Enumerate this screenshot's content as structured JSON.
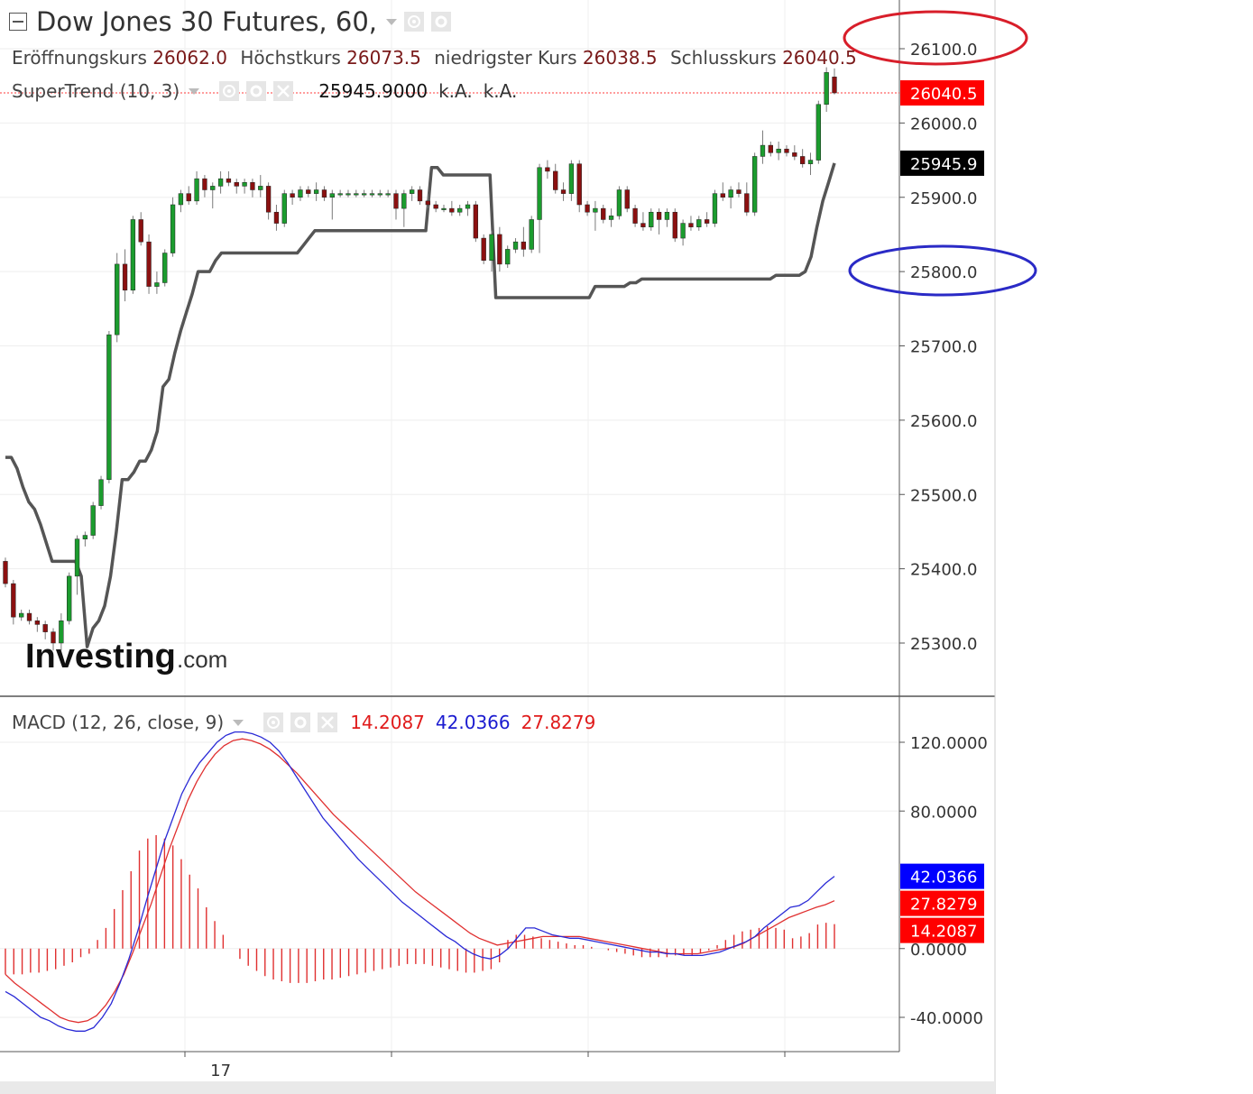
{
  "header": {
    "title": "Dow Jones 30 Futures, 60,",
    "ohlc": [
      {
        "label": "Eröffnungskurs",
        "value": "26062.0"
      },
      {
        "label": "Höchstkurs",
        "value": "26073.5"
      },
      {
        "label": "niedrigster Kurs",
        "value": "26038.5"
      },
      {
        "label": "Schlusskurs",
        "value": "26040.5"
      }
    ],
    "supertrend_label": "SuperTrend (10, 3)",
    "supertrend_value": "25945.9000",
    "supertrend_na1": "k.A.",
    "supertrend_na2": "k.A.",
    "macd_label": "MACD (12, 26, close, 9)",
    "macd_hist": "14.2087",
    "macd_line": "42.0366",
    "macd_signal": "27.8279"
  },
  "watermark": {
    "brand": "Investing",
    "suffix": ".com"
  },
  "colors": {
    "up": "#1b9c2e",
    "down": "#8b1010",
    "supertrend": "#555555",
    "macd": "#2a2ad6",
    "signal": "#e03030",
    "hist": "#e03030",
    "red_ellipse": "#d81e2a",
    "blue_ellipse": "#2a2ac6",
    "tag_red": "#ff0000",
    "tag_black": "#000000",
    "tag_blue": "#0000ff"
  },
  "chart_data": [
    {
      "type": "candlestick",
      "title": "Dow Jones 30 Futures, 60,",
      "ylim": [
        25240,
        26200
      ],
      "y_ticks": [
        "26100.0",
        "26000.0",
        "25900.0",
        "25800.0",
        "25700.0",
        "25600.0",
        "25500.0",
        "25400.0",
        "25300.0"
      ],
      "x_tick_labels": [
        {
          "index": 27,
          "label": "17"
        }
      ],
      "price_tags": [
        {
          "value": 26040.5,
          "label": "26040.5",
          "color": "#ff0000"
        },
        {
          "value": 25945.9,
          "label": "25945.9",
          "color": "#000000"
        }
      ],
      "ohlc": [
        [
          25410,
          25415,
          25375,
          25380
        ],
        [
          25380,
          25385,
          25325,
          25335
        ],
        [
          25335,
          25345,
          25330,
          25340
        ],
        [
          25340,
          25345,
          25325,
          25330
        ],
        [
          25330,
          25335,
          25315,
          25325
        ],
        [
          25325,
          25330,
          25305,
          25315
        ],
        [
          25315,
          25320,
          25290,
          25300
        ],
        [
          25300,
          25340,
          25290,
          25330
        ],
        [
          25330,
          25395,
          25325,
          25390
        ],
        [
          25390,
          25445,
          25365,
          25440
        ],
        [
          25440,
          25450,
          25430,
          25445
        ],
        [
          25445,
          25490,
          25440,
          25485
        ],
        [
          25485,
          25525,
          25480,
          25520
        ],
        [
          25520,
          25720,
          25515,
          25715
        ],
        [
          25715,
          25825,
          25705,
          25810
        ],
        [
          25810,
          25830,
          25760,
          25775
        ],
        [
          25775,
          25875,
          25770,
          25870
        ],
        [
          25870,
          25880,
          25835,
          25840
        ],
        [
          25840,
          25850,
          25770,
          25780
        ],
        [
          25780,
          25800,
          25770,
          25785
        ],
        [
          25785,
          25830,
          25780,
          25825
        ],
        [
          25825,
          25900,
          25820,
          25890
        ],
        [
          25890,
          25910,
          25880,
          25905
        ],
        [
          25905,
          25915,
          25890,
          25895
        ],
        [
          25895,
          25935,
          25890,
          25925
        ],
        [
          25925,
          25930,
          25900,
          25910
        ],
        [
          25910,
          25920,
          25885,
          25915
        ],
        [
          25915,
          25935,
          25905,
          25925
        ],
        [
          25925,
          25935,
          25915,
          25920
        ],
        [
          25920,
          25925,
          25905,
          25915
        ],
        [
          25915,
          25925,
          25905,
          25920
        ],
        [
          25920,
          25925,
          25900,
          25910
        ],
        [
          25910,
          25930,
          25900,
          25915
        ],
        [
          25915,
          25920,
          25870,
          25880
        ],
        [
          25880,
          25890,
          25855,
          25865
        ],
        [
          25865,
          25910,
          25860,
          25905
        ],
        [
          25905,
          25910,
          25890,
          25900
        ],
        [
          25900,
          25915,
          25895,
          25910
        ],
        [
          25910,
          25915,
          25900,
          25905
        ],
        [
          25905,
          25920,
          25895,
          25910
        ],
        [
          25910,
          25915,
          25895,
          25900
        ],
        [
          25900,
          25910,
          25870,
          25905
        ],
        [
          25905,
          25910,
          25900,
          25905
        ],
        [
          25905,
          25910,
          25900,
          25905
        ],
        [
          25905,
          25910,
          25900,
          25905
        ],
        [
          25905,
          25910,
          25900,
          25905
        ],
        [
          25905,
          25910,
          25900,
          25905
        ],
        [
          25905,
          25910,
          25900,
          25905
        ],
        [
          25905,
          25910,
          25900,
          25905
        ],
        [
          25905,
          25910,
          25870,
          25885
        ],
        [
          25885,
          25910,
          25860,
          25905
        ],
        [
          25905,
          25915,
          25895,
          25910
        ],
        [
          25910,
          25915,
          25890,
          25895
        ],
        [
          25895,
          25905,
          25885,
          25890
        ],
        [
          25890,
          25895,
          25880,
          25885
        ],
        [
          25885,
          25890,
          25880,
          25885
        ],
        [
          25885,
          25895,
          25875,
          25880
        ],
        [
          25880,
          25890,
          25875,
          25885
        ],
        [
          25885,
          25895,
          25875,
          25890
        ],
        [
          25890,
          25895,
          25840,
          25845
        ],
        [
          25845,
          25850,
          25810,
          25815
        ],
        [
          25815,
          25855,
          25800,
          25850
        ],
        [
          25850,
          25860,
          25800,
          25810
        ],
        [
          25810,
          25835,
          25805,
          25830
        ],
        [
          25830,
          25845,
          25825,
          25840
        ],
        [
          25840,
          25860,
          25820,
          25830
        ],
        [
          25830,
          25875,
          25825,
          25870
        ],
        [
          25870,
          25945,
          25825,
          25940
        ],
        [
          25940,
          25950,
          25925,
          25935
        ],
        [
          25935,
          25945,
          25905,
          25910
        ],
        [
          25910,
          25920,
          25895,
          25905
        ],
        [
          25905,
          25950,
          25895,
          25945
        ],
        [
          25945,
          25950,
          25880,
          25890
        ],
        [
          25890,
          25895,
          25875,
          25880
        ],
        [
          25880,
          25895,
          25855,
          25885
        ],
        [
          25885,
          25890,
          25865,
          25870
        ],
        [
          25870,
          25885,
          25860,
          25875
        ],
        [
          25875,
          25915,
          25870,
          25910
        ],
        [
          25910,
          25915,
          25880,
          25885
        ],
        [
          25885,
          25890,
          25860,
          25865
        ],
        [
          25865,
          25880,
          25855,
          25860
        ],
        [
          25860,
          25885,
          25855,
          25880
        ],
        [
          25880,
          25885,
          25850,
          25870
        ],
        [
          25870,
          25885,
          25860,
          25880
        ],
        [
          25880,
          25885,
          25840,
          25845
        ],
        [
          25845,
          25870,
          25835,
          25865
        ],
        [
          25865,
          25875,
          25855,
          25860
        ],
        [
          25860,
          25875,
          25855,
          25870
        ],
        [
          25870,
          25880,
          25860,
          25865
        ],
        [
          25865,
          25910,
          25860,
          25905
        ],
        [
          25905,
          25920,
          25895,
          25900
        ],
        [
          25900,
          25915,
          25885,
          25910
        ],
        [
          25910,
          25920,
          25900,
          25905
        ],
        [
          25905,
          25920,
          25875,
          25880
        ],
        [
          25880,
          25960,
          25875,
          25955
        ],
        [
          25955,
          25990,
          25945,
          25970
        ],
        [
          25970,
          25975,
          25955,
          25960
        ],
        [
          25960,
          25975,
          25950,
          25965
        ],
        [
          25965,
          25970,
          25955,
          25960
        ],
        [
          25960,
          25970,
          25950,
          25955
        ],
        [
          25955,
          25965,
          25940,
          25945
        ],
        [
          25945,
          25960,
          25930,
          25950
        ],
        [
          25950,
          26030,
          25945,
          26025
        ],
        [
          26025,
          26075,
          26015,
          26068
        ],
        [
          26062,
          26073.5,
          26038.5,
          26040.5
        ]
      ],
      "series": [
        {
          "name": "SuperTrend (10, 3)",
          "values": [
            25550,
            25550,
            25535,
            25510,
            25490,
            25480,
            25460,
            25435,
            25410,
            25410,
            25410,
            25410,
            25410,
            25390,
            25295,
            25320,
            25330,
            25350,
            25390,
            25450,
            25520,
            25520,
            25530,
            25545,
            25545,
            25560,
            25585,
            25645,
            25655,
            25690,
            25720,
            25745,
            25770,
            25800,
            25800,
            25800,
            25815,
            25825,
            25825,
            25825,
            25825,
            25825,
            25825,
            25825,
            25825,
            25825,
            25825,
            25825,
            25825,
            25825,
            25825,
            25835,
            25845,
            25855,
            25855,
            25855,
            25855,
            25855,
            25855,
            25855,
            25855,
            25855,
            25855,
            25855,
            25855,
            25855,
            25855,
            25855,
            25855,
            25855,
            25855,
            25855,
            25855,
            25940,
            25940,
            25930,
            25930,
            25930,
            25930,
            25930,
            25930,
            25930,
            25930,
            25930,
            25765,
            25765,
            25765,
            25765,
            25765,
            25765,
            25765,
            25765,
            25765,
            25765,
            25765,
            25765,
            25765,
            25765,
            25765,
            25765,
            25765,
            25780,
            25780,
            25780,
            25780,
            25780,
            25780,
            25785,
            25785,
            25790,
            25790,
            25790,
            25790,
            25790,
            25790,
            25790,
            25790,
            25790,
            25790,
            25790,
            25790,
            25790,
            25790,
            25790,
            25790,
            25790,
            25790,
            25790,
            25790,
            25790,
            25790,
            25790,
            25795,
            25795,
            25795,
            25795,
            25795,
            25800,
            25820,
            25860,
            25895,
            25920,
            25945.9
          ]
        }
      ]
    },
    {
      "type": "macd",
      "title": "MACD (12, 26, close, 9)",
      "ylim": [
        -60,
        140
      ],
      "y_ticks": [
        "120.0000",
        "80.0000",
        "0.0000",
        "-40.0000"
      ],
      "value_tags": [
        {
          "value": 42.0366,
          "label": "42.0366",
          "color": "#0000ff"
        },
        {
          "value": 27.8279,
          "label": "27.8279",
          "color": "#ff0000"
        },
        {
          "value": 14.2087,
          "label": "14.2087",
          "color": "#ff0000"
        }
      ],
      "series": [
        {
          "name": "MACD",
          "values": [
            -25,
            -28,
            -32,
            -36,
            -40,
            -42,
            -45,
            -47,
            -48,
            -48,
            -46,
            -40,
            -32,
            -20,
            -6,
            10,
            28,
            45,
            62,
            76,
            90,
            100,
            108,
            114,
            120,
            124,
            126,
            126,
            125,
            123,
            120,
            115,
            108,
            100,
            92,
            84,
            76,
            70,
            64,
            58,
            52,
            47,
            42,
            37,
            32,
            27,
            23,
            19,
            15,
            11,
            7,
            4,
            0,
            -3,
            -5,
            -6,
            -4,
            0,
            6,
            12,
            12,
            10,
            8,
            7,
            6,
            6,
            5,
            4,
            3,
            2,
            1,
            0,
            -1,
            -2,
            -2,
            -3,
            -3,
            -4,
            -4,
            -4,
            -3,
            -2,
            0,
            2,
            4,
            7,
            12,
            16,
            20,
            24,
            25,
            28,
            33,
            38,
            42.0366
          ]
        },
        {
          "name": "Signal",
          "values": [
            -15,
            -20,
            -24,
            -28,
            -32,
            -36,
            -40,
            -42,
            -43,
            -42,
            -39,
            -33,
            -25,
            -15,
            -2,
            12,
            26,
            42,
            58,
            72,
            86,
            97,
            106,
            113,
            118,
            121,
            122,
            121,
            119,
            116,
            112,
            107,
            102,
            96,
            90,
            84,
            78,
            73,
            68,
            63,
            58,
            53,
            48,
            43,
            38,
            33,
            29,
            25,
            21,
            17,
            13,
            9,
            6,
            4,
            2,
            3,
            4,
            5,
            6,
            7,
            7,
            7,
            7,
            7,
            6,
            5,
            4,
            3,
            2,
            1,
            0,
            -1,
            -2,
            -3,
            -3,
            -3,
            -3,
            -2,
            -1,
            0,
            1,
            3,
            6,
            9,
            12,
            15,
            18,
            20,
            22,
            24,
            25.5,
            27.8279
          ]
        },
        {
          "name": "Histogram",
          "values": [
            -15,
            -15,
            -15,
            -14,
            -14,
            -13,
            -12,
            -10,
            -8,
            -5,
            -3,
            5,
            12,
            23,
            34,
            45,
            57,
            64,
            66,
            64,
            60,
            52,
            43,
            35,
            24,
            16,
            8,
            0,
            -6,
            -10,
            -13,
            -16,
            -18,
            -19,
            -20,
            -20,
            -20,
            -19,
            -18,
            -18,
            -17,
            -16,
            -15,
            -14,
            -13,
            -12,
            -11,
            -10,
            -9,
            -9,
            -9,
            -10,
            -11,
            -12,
            -13,
            -14,
            -14,
            -13,
            -12,
            -8,
            5,
            8,
            8,
            7,
            6,
            5,
            4,
            3,
            2,
            2,
            1,
            0,
            -1,
            -2,
            -3,
            -4,
            -5,
            -5,
            -5,
            -5,
            -4,
            -4,
            -4,
            -3,
            -1,
            2,
            5,
            8,
            10,
            11,
            12,
            13,
            12,
            11,
            6,
            7,
            9,
            14,
            15,
            14.2087
          ]
        }
      ]
    }
  ]
}
